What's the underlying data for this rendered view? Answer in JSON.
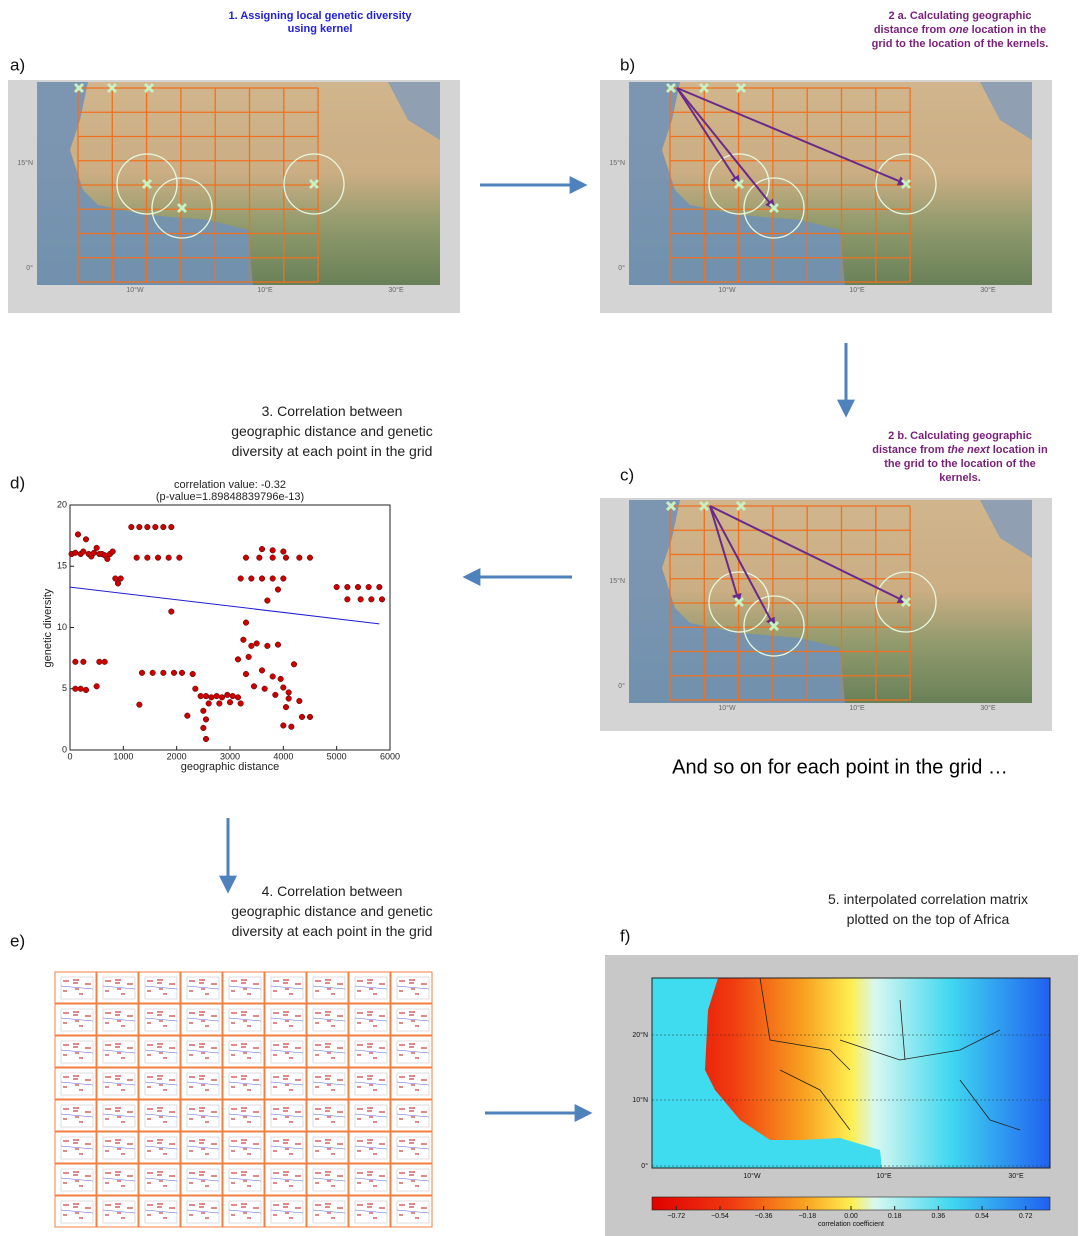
{
  "captions": {
    "step1": [
      [
        "1. Assigning local genetic diversity"
      ],
      [
        "using kernel"
      ]
    ],
    "step2a": [
      [
        "2 a. Calculating geographic"
      ],
      [
        "distance from ",
        "one",
        " location in the"
      ],
      [
        "grid to the location of the kernels."
      ]
    ],
    "step2b": [
      [
        "2 b. Calculating geographic"
      ],
      [
        "distance from ",
        "the next",
        " location in"
      ],
      [
        "the grid to the location of the"
      ],
      [
        "kernels."
      ]
    ],
    "step3": [
      [
        "3. Correlation between"
      ],
      [
        "geographic distance and genetic"
      ],
      [
        "diversity at each point in the grid"
      ]
    ],
    "step4": [
      [
        "4. Correlation between"
      ],
      [
        "geographic distance and genetic"
      ],
      [
        "diversity at each point in the grid"
      ]
    ],
    "step5": [
      [
        "5. interpolated correlation matrix"
      ],
      [
        "plotted on the top of Africa"
      ]
    ]
  },
  "panel_labels": [
    "a)",
    "b)",
    "c)",
    "d)",
    "e)",
    "f)"
  ],
  "and_so_on": "And so on for each point in the grid …",
  "map_labels": {
    "lat": [
      "15°N",
      "0°"
    ],
    "lon": [
      "10°W",
      "10°E",
      "30°E"
    ]
  },
  "result_map": {
    "lat": [
      "20°N",
      "10°N",
      "0°"
    ],
    "lon": [
      "10°W",
      "10°E",
      "30°E"
    ],
    "colorbar": {
      "lim": [
        -0.82,
        0.82
      ],
      "ticks": [
        {
          "value": -0.72,
          "label": "−0.72"
        },
        {
          "value": -0.54,
          "label": "−0.54"
        },
        {
          "value": -0.36,
          "label": "−0.36"
        },
        {
          "value": -0.18,
          "label": "−0.18"
        },
        {
          "value": 0,
          "label": "0.00"
        },
        0.18,
        0.36,
        0.54,
        0.72
      ],
      "label": "correlation coefficient"
    }
  },
  "chart_data": {
    "type": "scatter",
    "title": [
      "correlation value: -0.32",
      "(p-value=1.89848839796e-13)"
    ],
    "xlabel": "geographic distance",
    "ylabel": "genetic diversity",
    "xlim": [
      0,
      6000
    ],
    "ylim": [
      0,
      20
    ],
    "xticks": [
      0,
      1000,
      2000,
      3000,
      4000,
      5000,
      6000
    ],
    "yticks": [
      0,
      5,
      10,
      15,
      20
    ],
    "color": "#cc0000",
    "fit_color": "#1f1fd0",
    "x": [
      30,
      100,
      150,
      200,
      250,
      300,
      350,
      400,
      450,
      500,
      550,
      600,
      650,
      700,
      750,
      800,
      850,
      900,
      950,
      1150,
      1300,
      1450,
      1600,
      1750,
      1900,
      1250,
      1450,
      1650,
      1850,
      2050,
      1900,
      100,
      250,
      550,
      650,
      100,
      200,
      300,
      500,
      1350,
      1550,
      1750,
      1950,
      2100,
      1300,
      2450,
      2550,
      2650,
      2750,
      2850,
      2950,
      3050,
      3150,
      2600,
      2800,
      2500,
      2550,
      2500,
      2550,
      2300,
      2350,
      2200,
      3000,
      3200,
      3200,
      3400,
      3600,
      3800,
      4000,
      3300,
      3550,
      3800,
      4050,
      4300,
      4500,
      3600,
      3800,
      4000,
      3900,
      3700,
      3300,
      3250,
      3400,
      3500,
      3700,
      3900,
      3350,
      3600,
      3800,
      3950,
      3150,
      3300,
      3450,
      3650,
      3850,
      4000,
      4100,
      4100,
      4050,
      4000,
      4150,
      4350,
      4500,
      4200,
      4300,
      5000,
      5200,
      5400,
      5600,
      5800,
      5200,
      5450,
      5650,
      5850
    ],
    "y": [
      16,
      16.1,
      17.6,
      16,
      16.2,
      17.2,
      16,
      15.8,
      16.1,
      16.5,
      16,
      16,
      15.9,
      15.6,
      16,
      16.2,
      14,
      13.6,
      14,
      18.2,
      18.2,
      18.2,
      18.2,
      18.2,
      18.2,
      15.7,
      15.7,
      15.7,
      15.7,
      15.7,
      11.3,
      7.2,
      7.2,
      7.2,
      7.2,
      5,
      5,
      4.9,
      5.2,
      6.3,
      6.3,
      6.3,
      6.3,
      6.3,
      3.7,
      4.4,
      4.4,
      4.3,
      4.4,
      4.3,
      4.5,
      4.4,
      4.3,
      3.8,
      3.8,
      3.2,
      2.5,
      1.8,
      0.9,
      6.2,
      5,
      2.8,
      3.9,
      3.8,
      14,
      14,
      14,
      14,
      14,
      15.7,
      15.7,
      15.7,
      15.7,
      15.7,
      15.7,
      16.4,
      16.3,
      16.2,
      13.1,
      12.2,
      10.4,
      9,
      8.5,
      8.7,
      8.5,
      8.6,
      7.6,
      6.5,
      6,
      5.8,
      7.4,
      6.2,
      5.2,
      5,
      4.5,
      5.1,
      4.7,
      4.2,
      3.5,
      2,
      1.9,
      2.7,
      2.7,
      7,
      4,
      13.3,
      13.3,
      13.3,
      13.3,
      13.3,
      12.3,
      12.3,
      12.3,
      12.3
    ],
    "fit": {
      "x": [
        0,
        5800
      ],
      "y": [
        13.3,
        10.3
      ]
    }
  }
}
